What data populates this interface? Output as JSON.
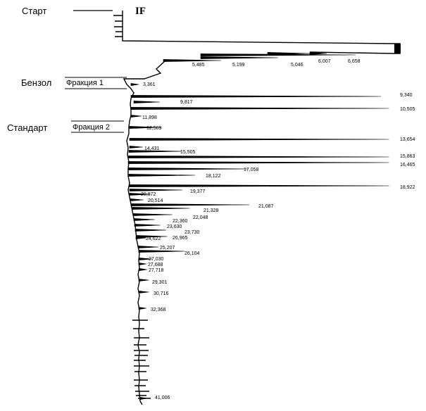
{
  "chart_data": {
    "type": "line",
    "orientation": "vertical-time",
    "labels": {
      "start": "Старт",
      "if_marker": "IF",
      "benzene": "Бензол",
      "fraction1": "Фракция 1",
      "standard": "Стандарт",
      "fraction2": "Фракция 2"
    },
    "peaks": [
      {
        "rt": "5,485",
        "time": 5.485,
        "intensity": 25
      },
      {
        "rt": "5,199",
        "time": 5.199,
        "intensity": 40
      },
      {
        "rt": "5,046",
        "time": 5.046,
        "intensity": 80
      },
      {
        "rt": "6,007",
        "time": 6.007,
        "intensity": 35
      },
      {
        "rt": "6,658",
        "time": 6.658,
        "intensity": 20
      },
      {
        "rt": "3,361",
        "time": 3.361,
        "intensity": 3
      },
      {
        "rt": "9,340",
        "time": 9.34,
        "intensity": 95
      },
      {
        "rt": "9,817",
        "time": 9.817,
        "intensity": 10
      },
      {
        "rt": "10,505",
        "time": 10.505,
        "intensity": 98
      },
      {
        "rt": "11,898",
        "time": 11.898,
        "intensity": 4
      },
      {
        "rt": "12,569",
        "time": 12.569,
        "intensity": 12
      },
      {
        "rt": "13,654",
        "time": 13.654,
        "intensity": 98
      },
      {
        "rt": "14,431",
        "time": 14.431,
        "intensity": 5
      },
      {
        "rt": "15,505",
        "time": 15.505,
        "intensity": 20
      },
      {
        "rt": "15,863",
        "time": 15.863,
        "intensity": 98
      },
      {
        "rt": "16,465",
        "time": 16.465,
        "intensity": 98
      },
      {
        "rt": "17,058",
        "time": 17.058,
        "intensity": 45
      },
      {
        "rt": "18,122",
        "time": 18.122,
        "intensity": 25
      },
      {
        "rt": "18,922",
        "time": 18.922,
        "intensity": 98
      },
      {
        "rt": "19,377",
        "time": 19.377,
        "intensity": 20
      },
      {
        "rt": "20,872",
        "time": 20.872,
        "intensity": 8
      },
      {
        "rt": "20,514",
        "time": 20.514,
        "intensity": 5
      },
      {
        "rt": "21,087",
        "time": 21.087,
        "intensity": 45
      },
      {
        "rt": "21,328",
        "time": 21.328,
        "intensity": 22
      },
      {
        "rt": "22,048",
        "time": 22.048,
        "intensity": 15
      },
      {
        "rt": "22,360",
        "time": 22.36,
        "intensity": 8
      },
      {
        "rt": "23,630",
        "time": 23.63,
        "intensity": 10
      },
      {
        "rt": "23,730",
        "time": 23.73,
        "intensity": 12
      },
      {
        "rt": "24,622",
        "time": 24.622,
        "intensity": 4
      },
      {
        "rt": "26,965",
        "time": 26.965,
        "intensity": 12
      },
      {
        "rt": "25,207",
        "time": 25.207,
        "intensity": 8
      },
      {
        "rt": "26,104",
        "time": 26.104,
        "intensity": 18
      },
      {
        "rt": "27,030",
        "time": 27.03,
        "intensity": 5
      },
      {
        "rt": "27,688",
        "time": 27.688,
        "intensity": 3
      },
      {
        "rt": "27,718",
        "time": 27.718,
        "intensity": 3
      },
      {
        "rt": "29,301",
        "time": 29.301,
        "intensity": 4
      },
      {
        "rt": "30,716",
        "time": 30.716,
        "intensity": 4
      },
      {
        "rt": "32,368",
        "time": 32.368,
        "intensity": 3
      },
      {
        "rt": "41,006",
        "time": 41.006,
        "intensity": 3
      }
    ]
  }
}
